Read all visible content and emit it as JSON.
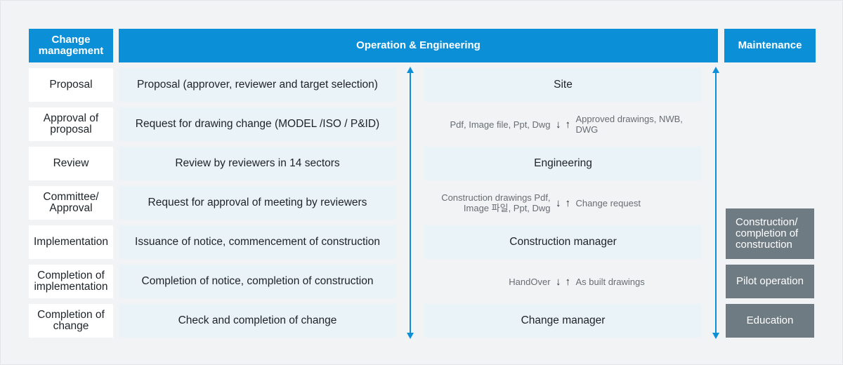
{
  "headers": {
    "change_management": "Change management",
    "operation_engineering": "Operation & Engineering",
    "maintenance": "Maintenance"
  },
  "rows": [
    {
      "step": "Proposal",
      "description": "Proposal (approver, reviewer and target selection)"
    },
    {
      "step": "Approval of proposal",
      "description": "Request for drawing change (MODEL /ISO / P&ID)"
    },
    {
      "step": "Review",
      "description": "Review by reviewers in 14 sectors"
    },
    {
      "step": "Committee/ Approval",
      "description": "Request for approval of meeting by reviewers"
    },
    {
      "step": "Implementation",
      "description": "Issuance of notice, commencement of construction"
    },
    {
      "step": "Completion of implementation",
      "description": "Completion of notice, completion of construction"
    },
    {
      "step": "Completion of change",
      "description": "Check and completion of change"
    }
  ],
  "flow": {
    "site": "Site",
    "flow1_down": "Pdf, Image file, Ppt, Dwg",
    "flow1_up": "Approved drawings, NWB, DWG",
    "engineering": "Engineering",
    "flow2_down": "Construction drawings Pdf, Image 파일, Ppt, Dwg",
    "flow2_up": "Change request",
    "construction_manager": "Construction manager",
    "flow3_down": "HandOver",
    "flow3_up": "As built drawings",
    "change_manager": "Change manager",
    "down_arrow": "↓",
    "up_arrow": "↑"
  },
  "maintenance": [
    "Construction/ completion of construction",
    "Pilot operation",
    "Education"
  ],
  "colors": {
    "header_blue": "#0b8fd6",
    "light_cell": "#eaf3f8",
    "maintenance_gray": "#6f7b82",
    "background": "#f2f3f5"
  }
}
